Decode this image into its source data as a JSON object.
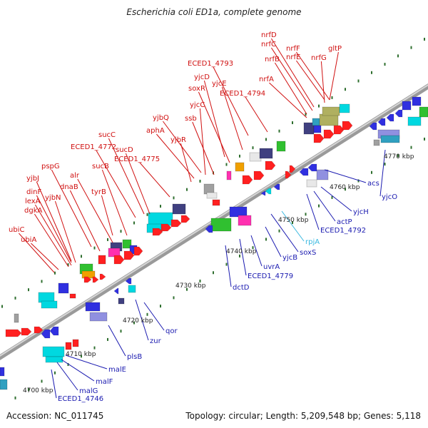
{
  "title": "Escherichia coli ED1a, complete genome",
  "accession": "Accession: NC_011745",
  "meta": "Topology: circular; Length: 5,209,548 bp; Genes: 5,118",
  "colors": {
    "upper_label": "#d01010",
    "lower_label": "#1a1ab0",
    "highlight_label": "#38b8e0",
    "backbone": "#7a7a7a",
    "ruler_tick": "#2f6f2f"
  },
  "scale_labels": [
    "4700 kbp",
    "4710 kbp",
    "4720 kbp",
    "4730 kbp",
    "4740 kbp",
    "4750 kbp",
    "4760 kbp",
    "4770 kbp"
  ],
  "upper_labels": [
    "nrfD",
    "nrfC",
    "nrfF",
    "nrfB",
    "nrfE",
    "nrfG",
    "gltP",
    "ECED1_4793",
    "nrfA",
    "yjcD",
    "yjcE",
    "soxR",
    "ECED1_4794",
    "yjcC",
    "yjbQ",
    "ssb",
    "aphA",
    "yjbR",
    "sucC",
    "ECED1_4772",
    "sucD",
    "ECED1_4775",
    "sucB",
    "pspG",
    "alr",
    "yjbJ",
    "dnaB",
    "yjbN",
    "tyrB",
    "dinF",
    "lexA",
    "dgkA",
    "ubiC",
    "ubiA"
  ],
  "lower_labels": [
    "acs",
    "yjcO",
    "yjcH",
    "actP",
    "ECED1_4792",
    "rpjA",
    "soxS",
    "yjcB",
    "uvrA",
    "ECED1_4779",
    "dctD",
    "qor",
    "zur",
    "plsB",
    "malE",
    "malF",
    "malG",
    "ECED1_4746"
  ],
  "highlight_labels": [
    "rpjA"
  ]
}
